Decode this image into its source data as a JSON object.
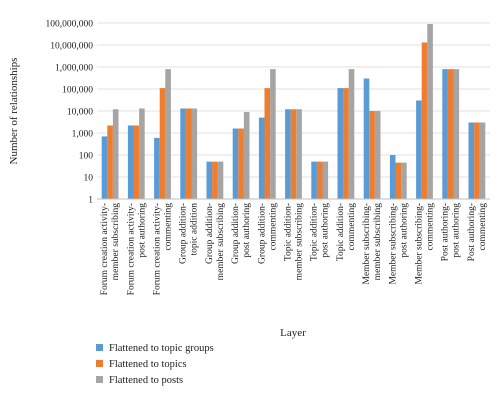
{
  "chart_data": {
    "type": "bar",
    "yscale": "log",
    "ylim": [
      1,
      100000000
    ],
    "grid": true,
    "legend_position": "bottom",
    "ylabel": "Number of relationships",
    "xlabel": "Layer",
    "yticks": [
      "1",
      "10",
      "100",
      "1,000",
      "10,000",
      "100,000",
      "1,000,000",
      "10,000,000",
      "100,000,000"
    ],
    "categories": [
      [
        "Forum creation activity-",
        "member subscribing"
      ],
      [
        "Forum creation activity-",
        "post authoring"
      ],
      [
        "Forum creation activity-",
        "commenting"
      ],
      [
        "Group addition-",
        "topic addition"
      ],
      [
        "Group addition-",
        "member subscribing"
      ],
      [
        "Group addition-",
        "post authoring"
      ],
      [
        "Group addition-",
        "commenting"
      ],
      [
        "Topic addition-",
        "member subscribing"
      ],
      [
        "Topic addition-",
        "post authoring"
      ],
      [
        "Topic addition-",
        "commenting"
      ],
      [
        "Member subscribing-",
        "member subscribing"
      ],
      [
        "Member subscribing-",
        "post authoring"
      ],
      [
        "Member subscribing-",
        "commenting"
      ],
      [
        "Post authoring-",
        "post authoring"
      ],
      [
        "Post authoring-",
        "commenting"
      ]
    ],
    "series": [
      {
        "name": "Flattened to topic groups",
        "color": "#5b9bd5",
        "values": [
          700,
          2200,
          600,
          13000,
          50,
          1600,
          5000,
          12000,
          50,
          110000,
          300000,
          100,
          30000,
          800000,
          3000
        ]
      },
      {
        "name": "Flattened to topics",
        "color": "#ed7d31",
        "values": [
          2200,
          2200,
          110000,
          13000,
          50,
          1600,
          110000,
          12000,
          50,
          110000,
          10000,
          45,
          13000000,
          800000,
          3000
        ]
      },
      {
        "name": "Flattened to posts",
        "color": "#a5a5a5",
        "values": [
          12000,
          13000,
          800000,
          13000,
          50,
          9000,
          800000,
          12000,
          50,
          800000,
          10000,
          45,
          90000000,
          800000,
          3000
        ]
      }
    ]
  }
}
